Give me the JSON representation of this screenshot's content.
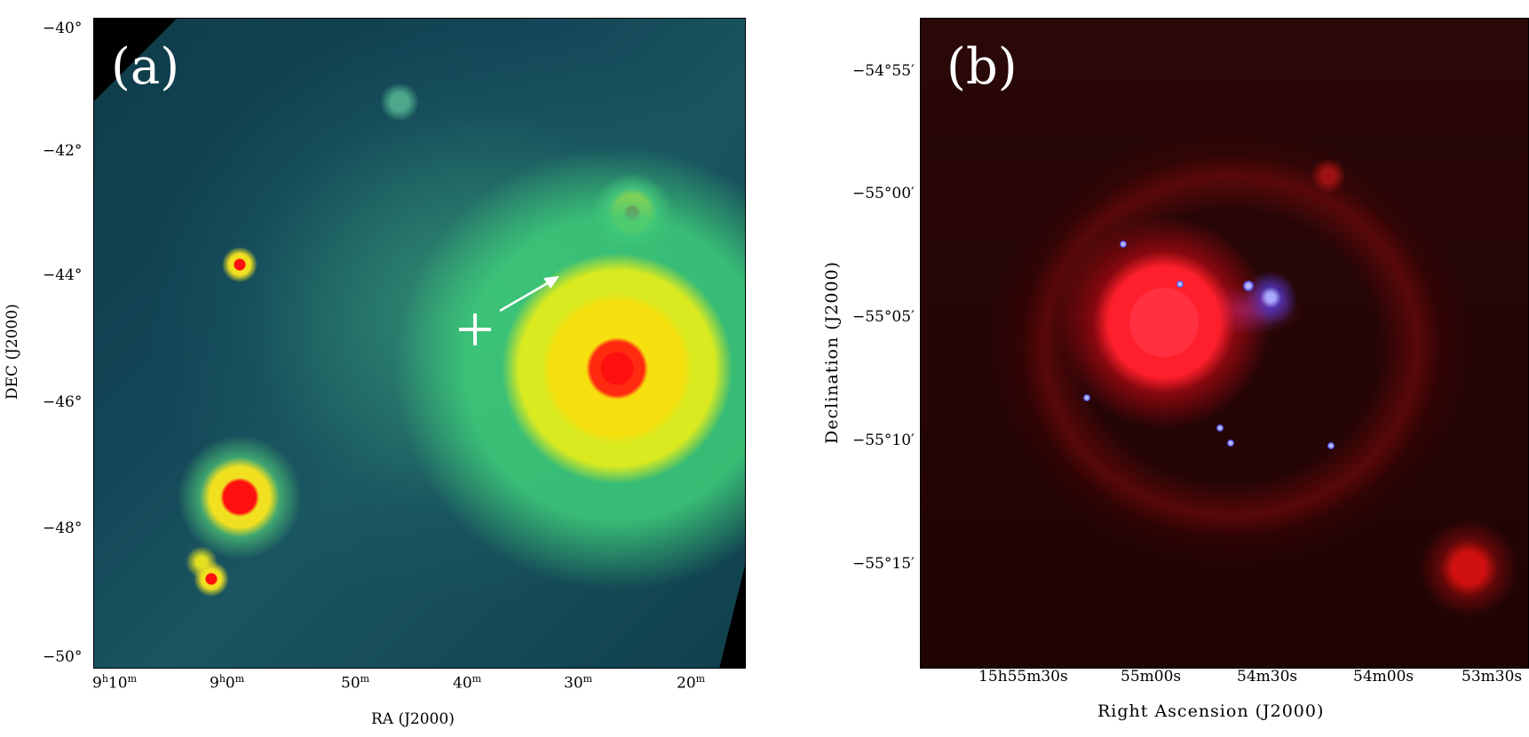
{
  "panel_a": {
    "label": "(a)",
    "y_tick_labels": [
      "−40°",
      "−42°",
      "−44°",
      "−46°",
      "−48°",
      "−50°"
    ],
    "x_tick_labels": [
      "9h10m",
      "9h0m",
      "50m",
      "40m",
      "30m",
      "20m"
    ],
    "x_tick_main": [
      "9",
      "9",
      "50",
      "40",
      "30",
      "20"
    ],
    "x_tick_sup1": [
      "h",
      "h",
      "m",
      "m",
      "m",
      "m"
    ],
    "x_tick_mid": [
      "10",
      "0",
      "",
      "",
      "",
      ""
    ],
    "x_tick_sup2": [
      "m",
      "m",
      "",
      "",
      "",
      ""
    ],
    "y_axis_title": "DEC (J2000)",
    "x_axis_title": "RA (J2000)"
  },
  "panel_b": {
    "label": "(b)",
    "y_tick_labels": [
      "−54°55′",
      "−55°00′",
      "−55°05′",
      "−55°10′",
      "−55°15′"
    ],
    "x_tick_labels": [
      "15h55m30s",
      "55m00s",
      "54m30s",
      "54m00s",
      "53m30s"
    ],
    "y_axis_title": "Declination (J2000)",
    "x_axis_title": "Right Ascension (J2000)"
  },
  "colors": {
    "panel_a_background": "#134657",
    "panel_a_hot": "#ff1010",
    "panel_a_warm": "#f0e020",
    "panel_b_background": "#260506",
    "panel_b_red": "#ff1f2c",
    "panel_b_blue": "#5050e0"
  }
}
